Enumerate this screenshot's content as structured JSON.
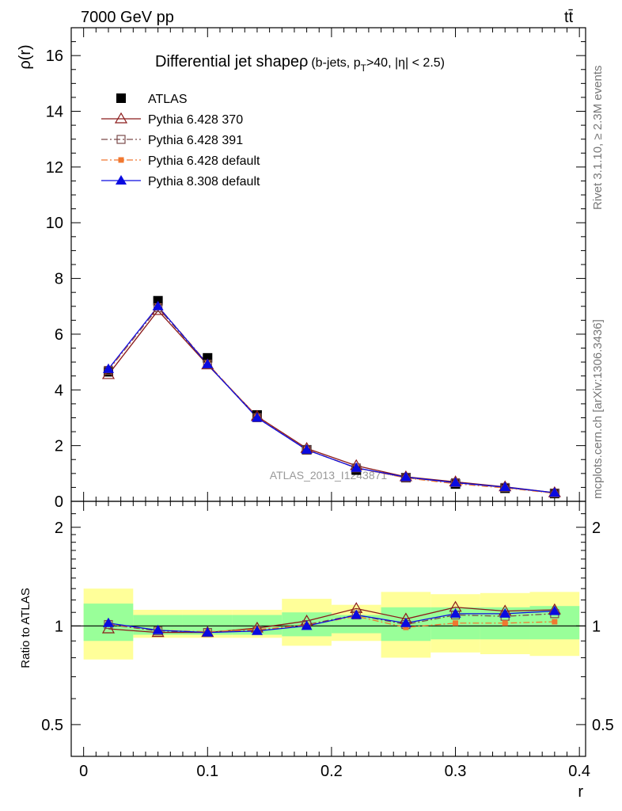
{
  "header": {
    "left": "7000 GeV pp",
    "right": "t",
    "right_bar": "t̄"
  },
  "side_labels": {
    "rivet": "Rivet 3.1.10, ≥ 2.3M events",
    "mcplots": "mcplots.cern.ch [arXiv:1306.3436]"
  },
  "watermark": "ATLAS_2013_I1243871",
  "title": {
    "main": "Differential jet shapeρ",
    "sub_open": "(b-jets, p",
    "sub_sub": "T",
    "sub_close": ">40, |η| < 2.5)"
  },
  "legend": {
    "entries": [
      {
        "label": "ATLAS",
        "color": "#000000",
        "marker": "square-filled",
        "line": "none"
      },
      {
        "label": "Pythia 6.428 370",
        "color": "#8b1a1a",
        "marker": "triangle-open",
        "line": "solid"
      },
      {
        "label": "Pythia 6.428 391",
        "color": "#7a4a4a",
        "marker": "square-open",
        "line": "dashdot"
      },
      {
        "label": "Pythia 6.428 default",
        "color": "#f07830",
        "marker": "square-filled-small",
        "line": "dashdot"
      },
      {
        "label": "Pythia 8.308 default",
        "color": "#0a0ae0",
        "marker": "triangle-filled",
        "line": "solid"
      }
    ]
  },
  "chart_data": {
    "type": "line",
    "x": [
      0.02,
      0.06,
      0.1,
      0.14,
      0.18,
      0.22,
      0.26,
      0.3,
      0.34,
      0.38
    ],
    "x_edges": [
      0.0,
      0.04,
      0.08,
      0.12,
      0.16,
      0.2,
      0.24,
      0.28,
      0.32,
      0.36,
      0.4
    ],
    "xlabel": "r",
    "ylabel": "ρ(r)",
    "ratio_ylabel": "Ratio to ATLAS",
    "xlim": [
      -0.01,
      0.405
    ],
    "ylim": [
      0,
      17
    ],
    "ratio_ylim": [
      0.4,
      2.4
    ],
    "ratio_log": true,
    "x_ticks": [
      "0",
      "0.1",
      "0.2",
      "0.3",
      "0.4"
    ],
    "x_tick_values": [
      0,
      0.1,
      0.2,
      0.3,
      0.4
    ],
    "y_ticks": [
      "0",
      "2",
      "4",
      "6",
      "8",
      "10",
      "12",
      "14",
      "16"
    ],
    "y_tick_values": [
      0,
      2,
      4,
      6,
      8,
      10,
      12,
      14,
      16
    ],
    "ratio_ticks": [
      "0.5",
      "1",
      "2"
    ],
    "ratio_tick_values": [
      0.5,
      1,
      2
    ],
    "data": {
      "name": "ATLAS",
      "values": [
        4.65,
        7.2,
        5.15,
        3.1,
        1.85,
        1.12,
        0.85,
        0.62,
        0.47,
        0.28
      ]
    },
    "series": [
      {
        "name": "Pythia 6.428 370",
        "values": [
          4.55,
          6.85,
          4.9,
          3.05,
          1.9,
          1.28,
          0.88,
          0.7,
          0.52,
          0.31
        ]
      },
      {
        "name": "Pythia 6.428 391",
        "values": [
          4.7,
          6.95,
          4.92,
          3.0,
          1.85,
          1.2,
          0.85,
          0.67,
          0.5,
          0.3
        ]
      },
      {
        "name": "Pythia 6.428 default",
        "values": [
          4.7,
          7.0,
          4.95,
          3.02,
          1.86,
          1.2,
          0.84,
          0.63,
          0.48,
          0.29
        ]
      },
      {
        "name": "Pythia 8.308 default",
        "values": [
          4.75,
          7.0,
          4.92,
          3.0,
          1.85,
          1.2,
          0.87,
          0.67,
          0.51,
          0.31
        ]
      }
    ],
    "ratios": [
      [
        0.98,
        0.955,
        0.955,
        0.985,
        1.035,
        1.13,
        1.05,
        1.14,
        1.11,
        1.12
      ],
      [
        1.01,
        0.965,
        0.955,
        0.97,
        1.01,
        1.08,
        1.01,
        1.08,
        1.07,
        1.09
      ],
      [
        1.015,
        0.97,
        0.96,
        0.975,
        1.005,
        1.07,
        0.99,
        1.02,
        1.02,
        1.03
      ],
      [
        1.02,
        0.97,
        0.955,
        0.965,
        1.0,
        1.08,
        1.02,
        1.09,
        1.09,
        1.11
      ]
    ],
    "band_stat": [
      [
        0.9,
        1.17
      ],
      [
        0.94,
        1.08
      ],
      [
        0.94,
        1.08
      ],
      [
        0.94,
        1.08
      ],
      [
        0.93,
        1.1
      ],
      [
        0.95,
        1.08
      ],
      [
        0.9,
        1.14
      ],
      [
        0.91,
        1.14
      ],
      [
        0.91,
        1.14
      ],
      [
        0.91,
        1.15
      ]
    ],
    "band_total": [
      [
        0.79,
        1.3
      ],
      [
        0.92,
        1.12
      ],
      [
        0.92,
        1.12
      ],
      [
        0.92,
        1.12
      ],
      [
        0.87,
        1.21
      ],
      [
        0.9,
        1.16
      ],
      [
        0.8,
        1.27
      ],
      [
        0.83,
        1.25
      ],
      [
        0.82,
        1.26
      ],
      [
        0.81,
        1.27
      ]
    ],
    "grid": false,
    "legend_position": "top-left"
  }
}
